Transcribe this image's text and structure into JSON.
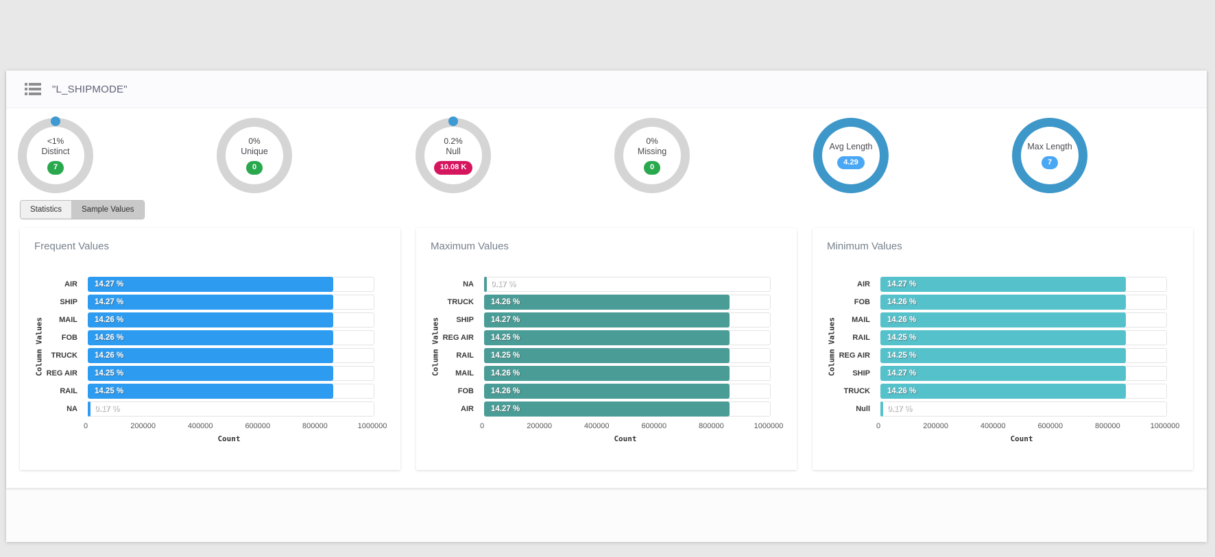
{
  "header": {
    "title": "\"L_SHIPMODE\"",
    "icon": "list-icon"
  },
  "gauges": [
    {
      "id": "distinct",
      "percent": "<1%",
      "name": "Distinct",
      "badge": "7",
      "badge_color": "#2aa84e",
      "ring": "gray",
      "dot": true
    },
    {
      "id": "unique",
      "percent": "0%",
      "name": "Unique",
      "badge": "0",
      "badge_color": "#2aa84e",
      "ring": "gray",
      "dot": false
    },
    {
      "id": "null",
      "percent": "0.2%",
      "name": "Null",
      "badge": "10.08 K",
      "badge_color": "#d6155f",
      "ring": "gray",
      "dot": true
    },
    {
      "id": "missing",
      "percent": "0%",
      "name": "Missing",
      "badge": "0",
      "badge_color": "#2aa84e",
      "ring": "gray",
      "dot": false
    },
    {
      "id": "avg-length",
      "percent": "",
      "name": "Avg Length",
      "badge": "4.29",
      "badge_color": "#49a7f3",
      "ring": "blue",
      "dot": false
    },
    {
      "id": "max-length",
      "percent": "",
      "name": "Max Length",
      "badge": "7",
      "badge_color": "#49a7f3",
      "ring": "blue",
      "dot": false
    }
  ],
  "tabs": [
    {
      "label": "Statistics",
      "active": false
    },
    {
      "label": "Sample Values",
      "active": true
    }
  ],
  "chart_data": [
    {
      "type": "bar",
      "orientation": "horizontal",
      "title": "Frequent Values",
      "xlabel": "Count",
      "ylabel": "Column Values",
      "xlim": [
        0,
        1000000
      ],
      "xtick_labels": [
        "0",
        "200000",
        "400000",
        "600000",
        "800000",
        "1000000"
      ],
      "grid": false,
      "bar_color": "#2d9bf0",
      "categories": [
        "AIR",
        "SHIP",
        "MAIL",
        "FOB",
        "TRUCK",
        "REG AIR",
        "RAIL",
        "NA"
      ],
      "labels": [
        "14.27 %",
        "14.27 %",
        "14.26 %",
        "14.26 %",
        "14.26 %",
        "14.25 %",
        "14.25 %",
        "0.17 %"
      ],
      "values": [
        856500,
        856500,
        855900,
        855900,
        855900,
        855300,
        855300,
        10080
      ]
    },
    {
      "type": "bar",
      "orientation": "horizontal",
      "title": "Maximum Values",
      "xlabel": "Count",
      "ylabel": "Column Values",
      "xlim": [
        0,
        1000000
      ],
      "xtick_labels": [
        "0",
        "200000",
        "400000",
        "600000",
        "800000",
        "1000000"
      ],
      "grid": false,
      "bar_color": "#4a9c97",
      "categories": [
        "NA",
        "TRUCK",
        "SHIP",
        "REG AIR",
        "RAIL",
        "MAIL",
        "FOB",
        "AIR"
      ],
      "labels": [
        "0.17 %",
        "14.26 %",
        "14.27 %",
        "14.25 %",
        "14.25 %",
        "14.26 %",
        "14.26 %",
        "14.27 %"
      ],
      "values": [
        10080,
        855900,
        856500,
        855300,
        855300,
        855900,
        855900,
        856500
      ]
    },
    {
      "type": "bar",
      "orientation": "horizontal",
      "title": "Minimum Values",
      "xlabel": "Count",
      "ylabel": "Column Values",
      "xlim": [
        0,
        1000000
      ],
      "xtick_labels": [
        "0",
        "200000",
        "400000",
        "600000",
        "800000",
        "1000000"
      ],
      "grid": false,
      "bar_color": "#55c1cb",
      "categories": [
        "AIR",
        "FOB",
        "MAIL",
        "RAIL",
        "REG AIR",
        "SHIP",
        "TRUCK",
        "Null"
      ],
      "labels": [
        "14.27 %",
        "14.26 %",
        "14.26 %",
        "14.25 %",
        "14.25 %",
        "14.27 %",
        "14.26 %",
        "0.17 %"
      ],
      "values": [
        856500,
        855900,
        855900,
        855300,
        855300,
        856500,
        855900,
        10080
      ]
    }
  ]
}
